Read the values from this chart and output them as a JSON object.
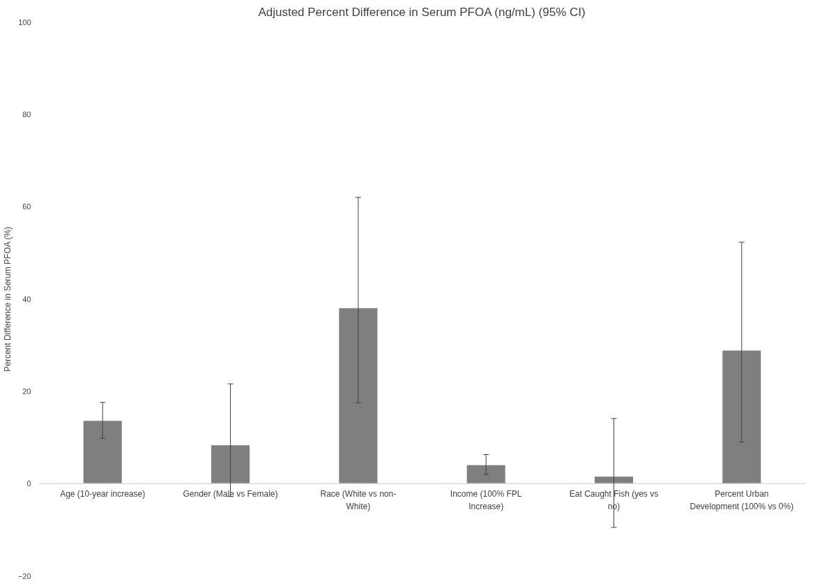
{
  "chart_data": {
    "type": "bar",
    "title": "Adjusted Percent Difference in Serum PFOA (ng/mL) (95% CI)",
    "ylabel": "Percent Difference in Serum PFOA (%)",
    "categories": [
      "Age (10-year increase)",
      "Gender (Male vs Female)",
      "Race (White vs non-White)",
      "Income (100% FPL Increase)",
      "Eat Caught Fish (yes vs no)",
      "Percent Urban Development (100% vs 0%)"
    ],
    "values": [
      13.6,
      8.3,
      38,
      4.0,
      1.5,
      28.8
    ],
    "errors": [
      [
        9.8,
        17.6
      ],
      [
        -2.8,
        21.6
      ],
      [
        17.5,
        62
      ],
      [
        2.0,
        6.3
      ],
      [
        -9.5,
        14.1
      ],
      [
        9,
        52.3
      ]
    ],
    "color": "#7f7f7f",
    "ylim": [
      -20,
      100
    ],
    "yticks": [
      -20,
      0,
      20,
      40,
      60,
      80,
      100
    ],
    "grid": false
  }
}
